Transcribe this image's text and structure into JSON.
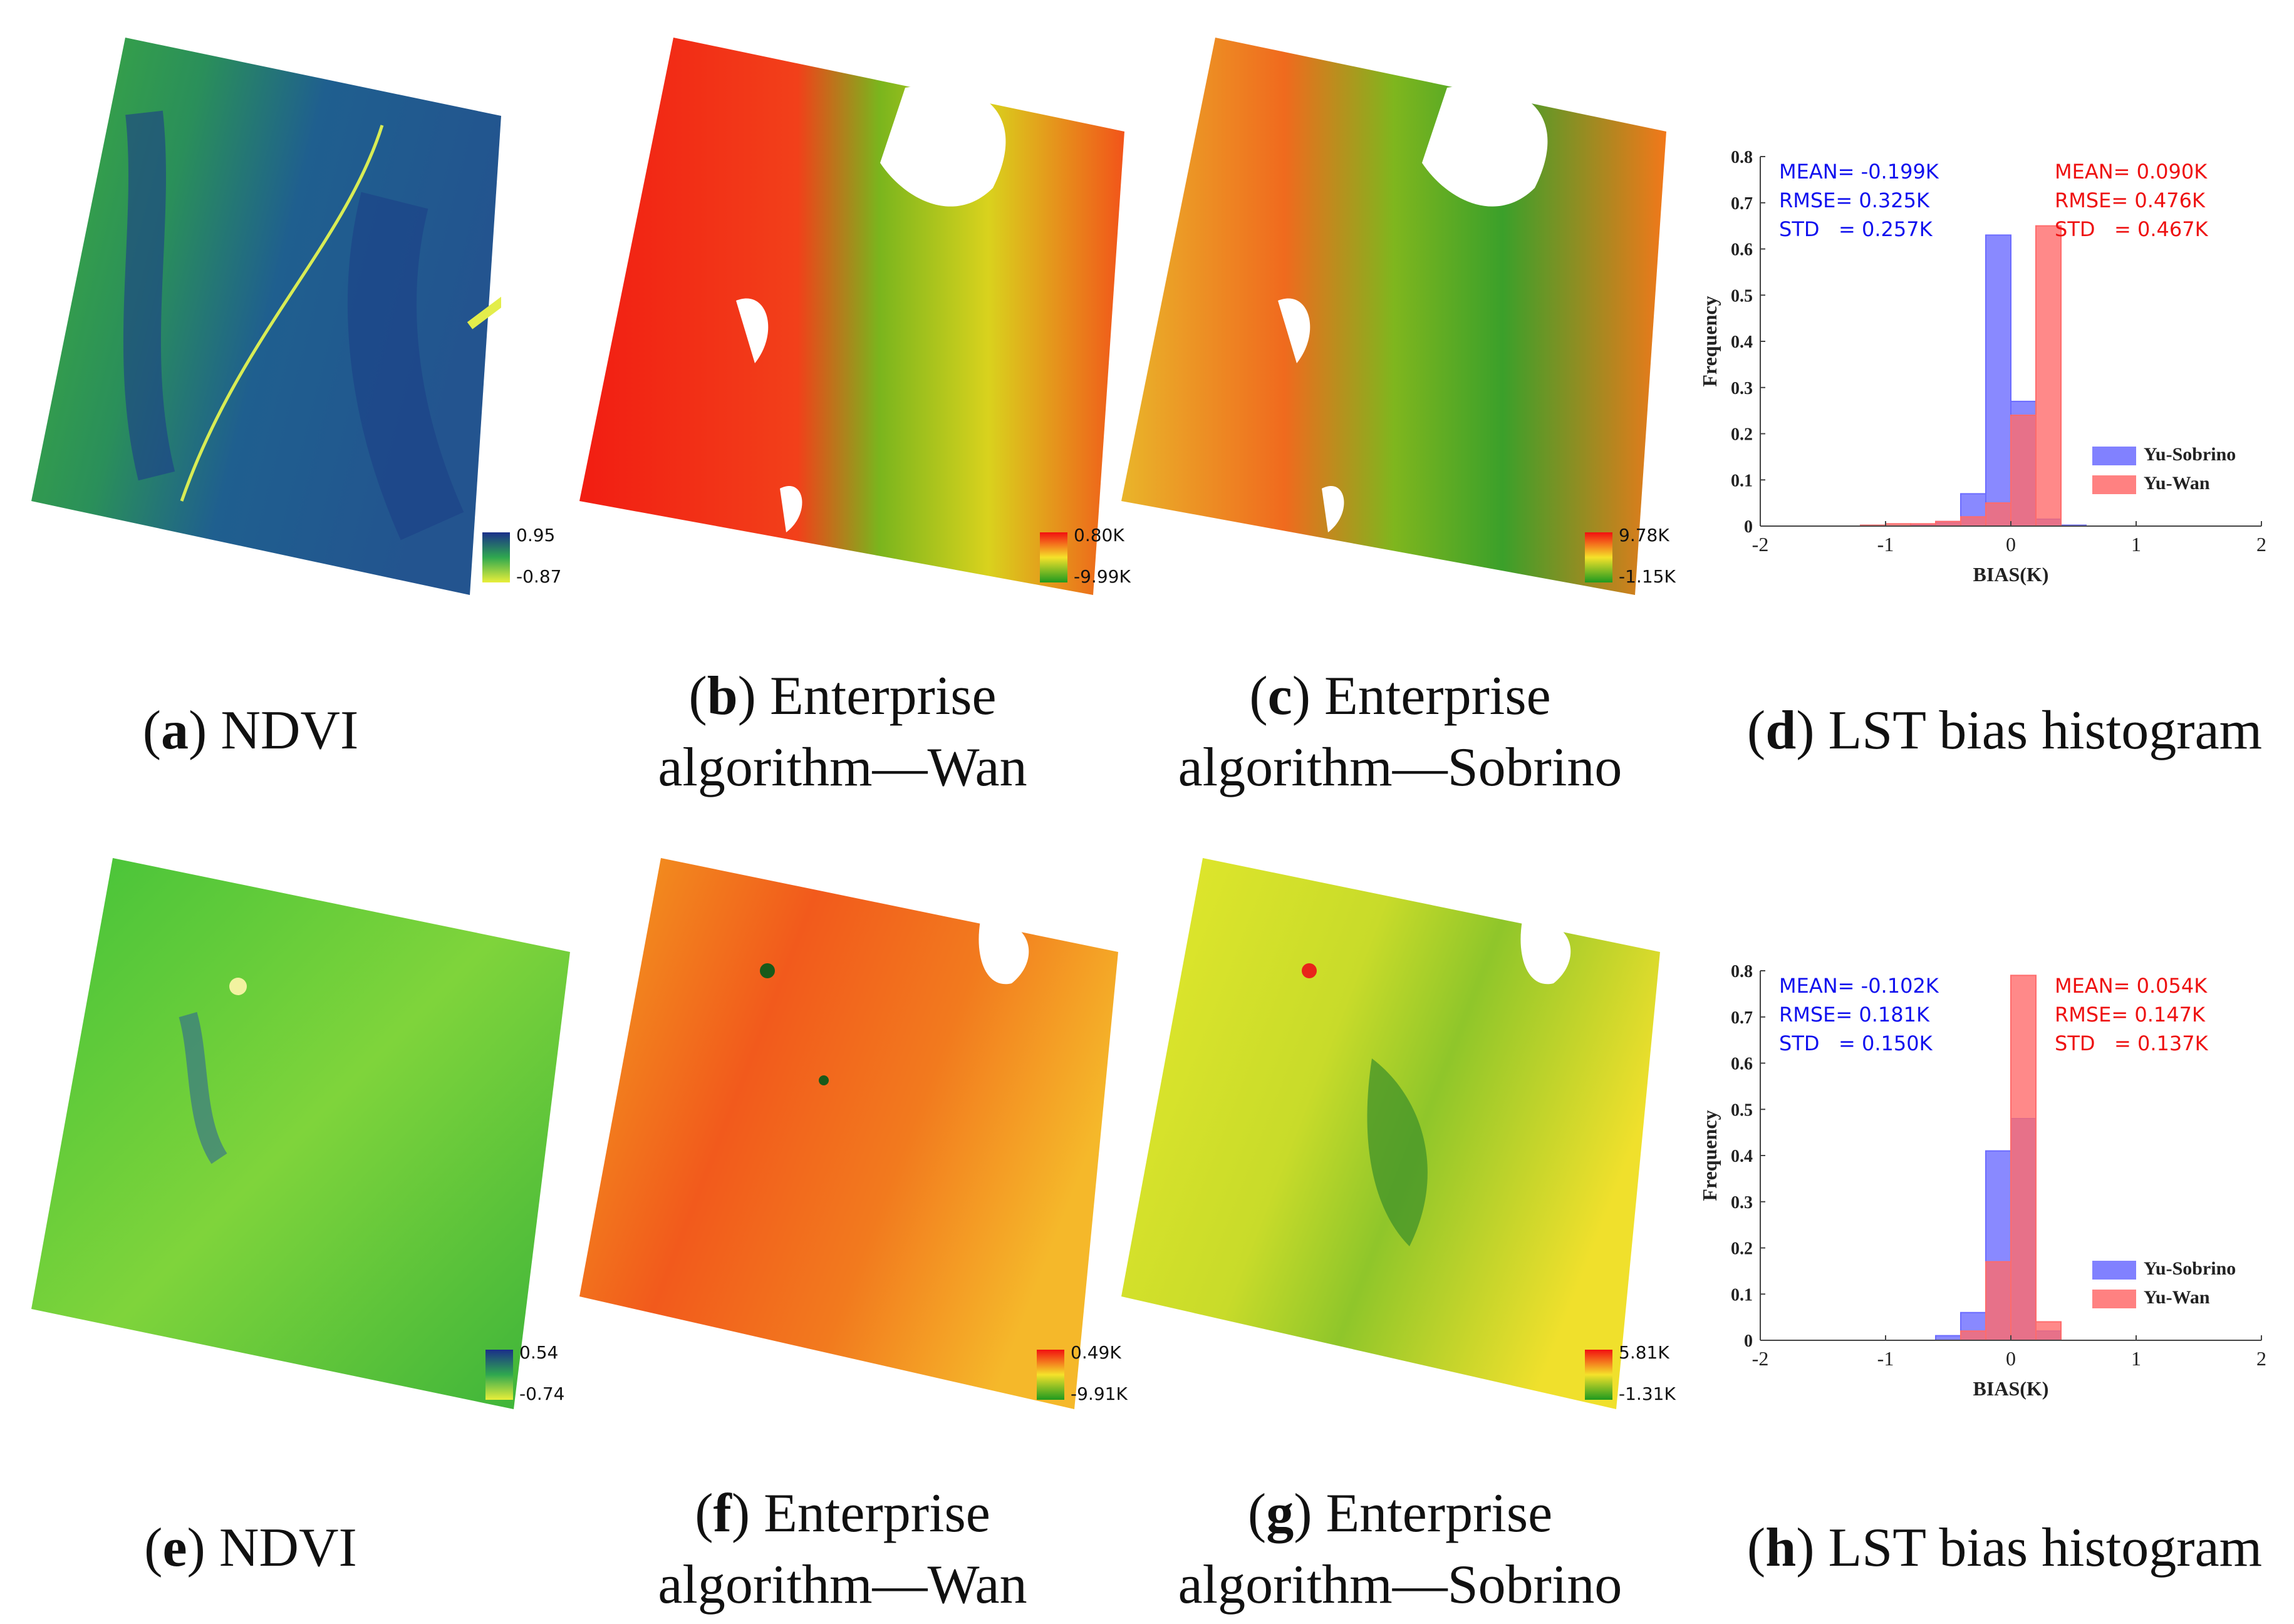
{
  "captions": {
    "a": {
      "letter": "a",
      "text": " NDVI"
    },
    "b": {
      "letter": "b",
      "line1": " Enterprise",
      "line2": "algorithm—Wan"
    },
    "c": {
      "letter": "c",
      "line1": " Enterprise",
      "line2": "algorithm—Sobrino"
    },
    "d": {
      "letter": "d",
      "text": " LST bias histogram"
    },
    "e": {
      "letter": "e",
      "text": " NDVI"
    },
    "f": {
      "letter": "f",
      "line1": " Enterprise",
      "line2": "algorithm—Wan"
    },
    "g": {
      "letter": "g",
      "line1": " Enterprise",
      "line2": "algorithm—Sobrino"
    },
    "h": {
      "letter": "h",
      "text": " LST bias histogram"
    }
  },
  "colorbars": {
    "a": {
      "max": "0.95",
      "min": "-0.87"
    },
    "b": {
      "max": "0.80K",
      "min": "-9.99K"
    },
    "c": {
      "max": "9.78K",
      "min": "-1.15K"
    },
    "e": {
      "max": "0.54",
      "min": "-0.74"
    },
    "f": {
      "max": "0.49K",
      "min": "-9.91K"
    },
    "g": {
      "max": "5.81K",
      "min": "-1.31K"
    }
  },
  "colors": {
    "ndvi_high": "#1a2f8a",
    "ndvi_mid": "#2fa84f",
    "ndvi_low": "#e9ef3a",
    "lst_high": "#f20f10",
    "lst_mid": "#f5e22a",
    "lst_low": "#1f9a1f",
    "sobrino": "#6b6bff",
    "wan": "#ff6b6b",
    "stat_blue": "#1010ee",
    "stat_red": "#ee1010"
  },
  "chart_data": [
    {
      "type": "bar",
      "panel": "d",
      "xlabel": "BIAS(K)",
      "ylabel": "Frequency",
      "xlim": [
        -2,
        2
      ],
      "ylim": [
        0,
        0.8
      ],
      "xticks": [
        "-2",
        "-1",
        "0",
        "1",
        "2"
      ],
      "yticks": [
        "0",
        "0.1",
        "0.2",
        "0.3",
        "0.4",
        "0.5",
        "0.6",
        "0.7",
        "0.8"
      ],
      "legend_position": "lower-right",
      "stats": [
        {
          "series": "Yu-Sobrino",
          "lines": [
            "MEAN= -0.199K",
            "RMSE= 0.325K",
            "STD   = 0.257K"
          ]
        },
        {
          "series": "Yu-Wan",
          "lines": [
            "MEAN= 0.090K",
            "RMSE= 0.476K",
            "STD   = 0.467K"
          ]
        }
      ],
      "series": [
        {
          "name": "Yu-Sobrino",
          "bin_edges": [
            -1.0,
            -0.8,
            -0.6,
            -0.4,
            -0.2,
            0.0,
            0.2,
            0.4,
            0.6
          ],
          "values": [
            0.0,
            0.002,
            0.01,
            0.07,
            0.63,
            0.27,
            0.015,
            0.002
          ]
        },
        {
          "name": "Yu-Wan",
          "bin_edges": [
            -1.2,
            -1.0,
            -0.8,
            -0.6,
            -0.4,
            -0.2,
            0.0,
            0.2,
            0.4
          ],
          "values": [
            0.002,
            0.005,
            0.005,
            0.01,
            0.02,
            0.05,
            0.24,
            0.65
          ]
        }
      ]
    },
    {
      "type": "bar",
      "panel": "h",
      "xlabel": "BIAS(K)",
      "ylabel": "Frequency",
      "xlim": [
        -2,
        2
      ],
      "ylim": [
        0,
        0.8
      ],
      "xticks": [
        "-2",
        "-1",
        "0",
        "1",
        "2"
      ],
      "yticks": [
        "0",
        "0.1",
        "0.2",
        "0.3",
        "0.4",
        "0.5",
        "0.6",
        "0.7",
        "0.8"
      ],
      "legend_position": "lower-right",
      "stats": [
        {
          "series": "Yu-Sobrino",
          "lines": [
            "MEAN= -0.102K",
            "RMSE= 0.181K",
            "STD   = 0.150K"
          ]
        },
        {
          "series": "Yu-Wan",
          "lines": [
            "MEAN= 0.054K",
            "RMSE= 0.147K",
            "STD   = 0.137K"
          ]
        }
      ],
      "series": [
        {
          "name": "Yu-Sobrino",
          "bin_edges": [
            -0.6,
            -0.4,
            -0.2,
            0.0,
            0.2,
            0.4
          ],
          "values": [
            0.01,
            0.06,
            0.41,
            0.48,
            0.02
          ]
        },
        {
          "name": "Yu-Wan",
          "bin_edges": [
            -0.4,
            -0.2,
            0.0,
            0.2,
            0.4
          ],
          "values": [
            0.02,
            0.17,
            0.79,
            0.04
          ]
        }
      ]
    }
  ]
}
